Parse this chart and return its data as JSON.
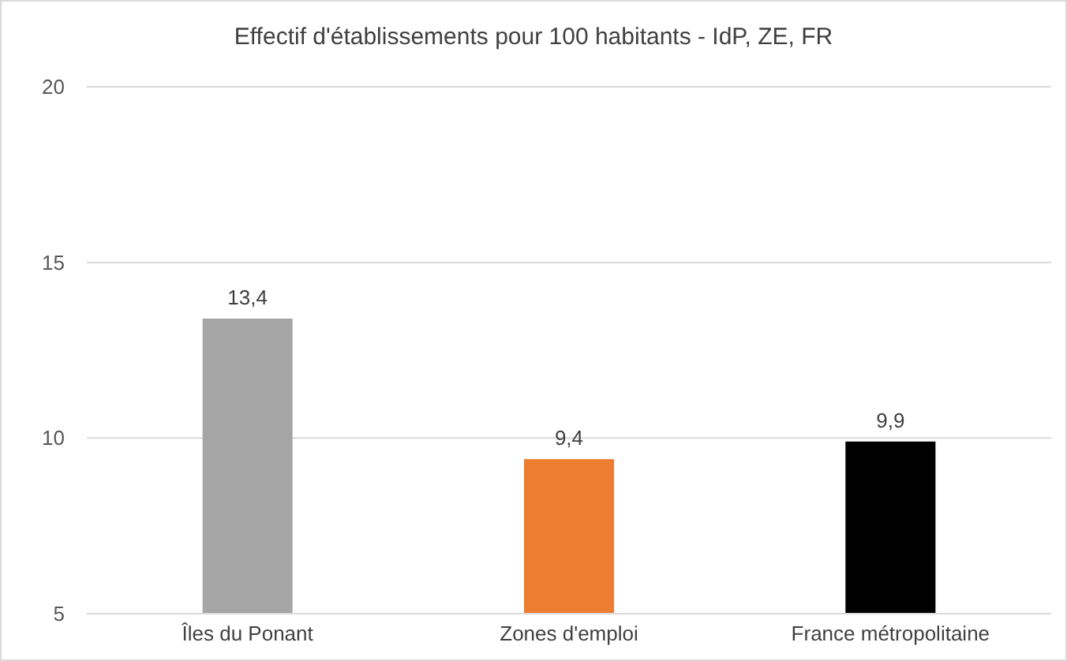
{
  "chart_data": {
    "type": "bar",
    "title": "Effectif d'établissements pour 100 habitants - IdP, ZE, FR",
    "categories": [
      "Îles du Ponant",
      "Zones d'emploi",
      "France métropolitaine"
    ],
    "values": [
      13.4,
      9.4,
      9.9
    ],
    "colors": [
      "#a5a5a5",
      "#ed7d31",
      "#000000"
    ],
    "value_labels": [
      "13,4",
      "9,4",
      "9,9"
    ],
    "ylim": [
      5,
      20
    ],
    "yticks": [
      5,
      10,
      15,
      20
    ],
    "grid": "y"
  }
}
